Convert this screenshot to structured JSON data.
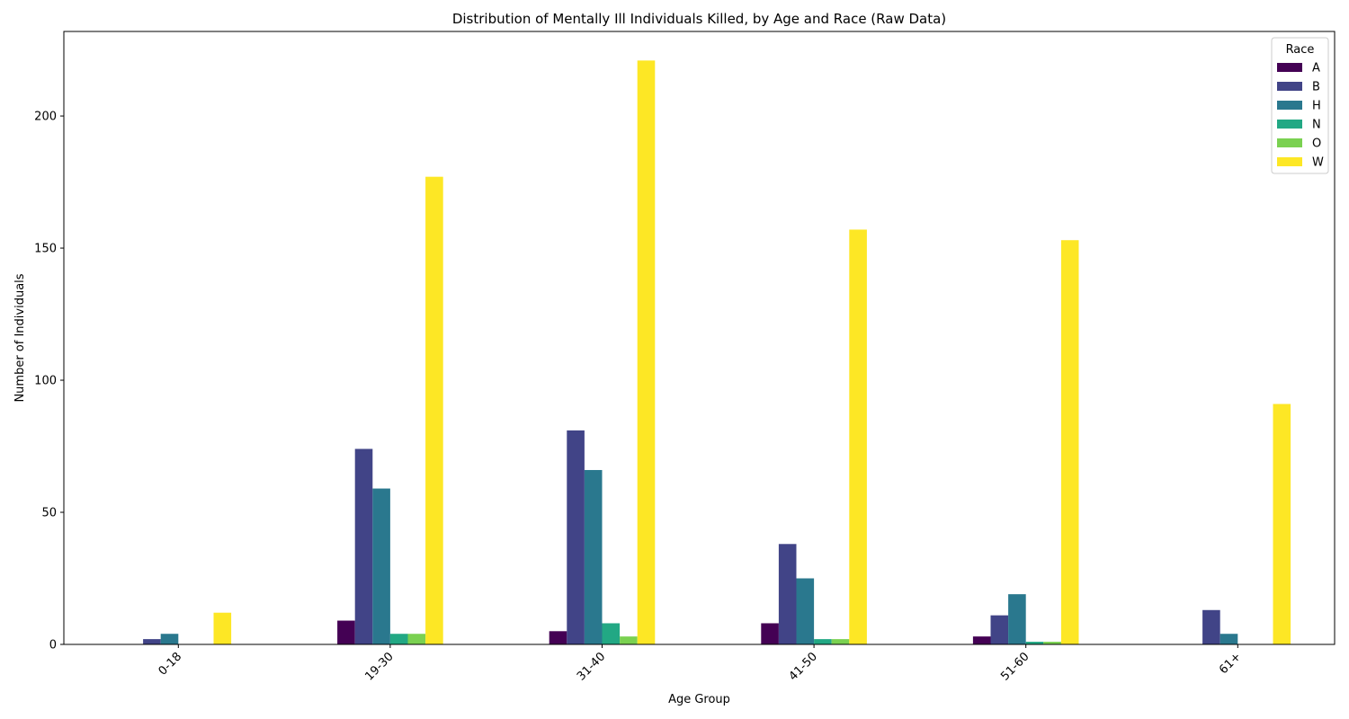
{
  "chart_data": {
    "type": "bar",
    "title": "Distribution of Mentally Ill Individuals Killed, by Age and Race (Raw Data)",
    "xlabel": "Age Group",
    "ylabel": "Number of Individuals",
    "categories": [
      "0-18",
      "19-30",
      "31-40",
      "41-50",
      "51-60",
      "61+"
    ],
    "ylim": [
      0,
      232
    ],
    "yticks": [
      0,
      50,
      100,
      150,
      200
    ],
    "grid": false,
    "legend": {
      "title": "Race",
      "position": "top-right"
    },
    "series": [
      {
        "name": "A",
        "color": "#440154",
        "values": [
          0,
          9,
          5,
          8,
          3,
          0
        ]
      },
      {
        "name": "B",
        "color": "#414487",
        "values": [
          2,
          74,
          81,
          38,
          11,
          13
        ]
      },
      {
        "name": "H",
        "color": "#2a788e",
        "values": [
          4,
          59,
          66,
          25,
          19,
          4
        ]
      },
      {
        "name": "N",
        "color": "#22a884",
        "values": [
          0,
          4,
          8,
          2,
          1,
          0
        ]
      },
      {
        "name": "O",
        "color": "#7ad151",
        "values": [
          0,
          4,
          3,
          2,
          1,
          0
        ]
      },
      {
        "name": "W",
        "color": "#fde725",
        "values": [
          12,
          177,
          221,
          157,
          153,
          91
        ]
      }
    ]
  }
}
